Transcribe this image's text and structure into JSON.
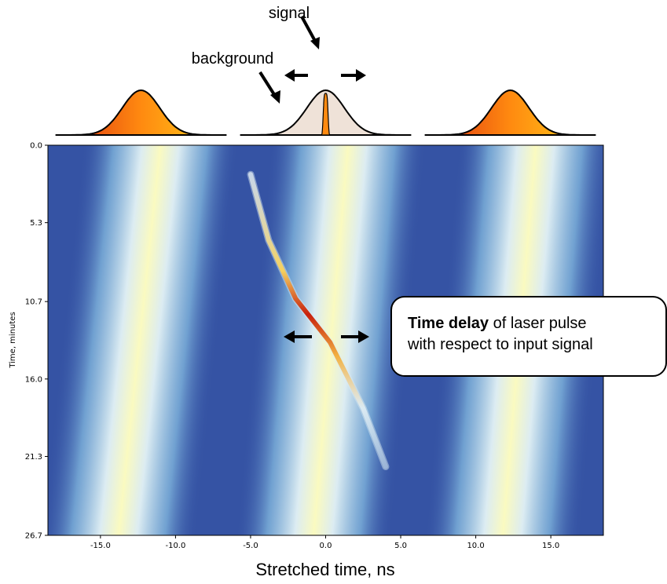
{
  "annotations": {
    "signal_label": "signal",
    "background_label": "background",
    "callout_bold": "Time delay",
    "callout_rest_line1": " of laser pulse",
    "callout_line2": "with respect to input signal"
  },
  "colors": {
    "pulse_dark": "#d92b12",
    "pulse_mid": "#ff8a10",
    "pulse_light": "#ffd21a",
    "background_fill": "#efe2d8",
    "heatmap_low": "#3553a4",
    "heatmap_high": "#fafac0",
    "signal_trace": "#d03010"
  },
  "chart_data": [
    {
      "type": "line",
      "description_role": "pulse profiles",
      "title": "",
      "xlabel": "",
      "ylabel": "",
      "x_range_ns": [
        -18.5,
        18.5
      ],
      "series": [
        {
          "name": "",
          "center": -12.3,
          "width": 3.0,
          "peak": 1.0,
          "fill": "gradient-orange"
        },
        {
          "name": "background",
          "center": 0.0,
          "width": 3.0,
          "peak": 1.0,
          "fill": "beige"
        },
        {
          "name": "signal",
          "center": 0.0,
          "width": 0.18,
          "peak": 1.55,
          "fill": "orange"
        },
        {
          "name": "",
          "center": 12.3,
          "width": 3.0,
          "peak": 1.0,
          "fill": "gradient-orange"
        }
      ]
    },
    {
      "type": "heatmap",
      "title": "",
      "xlabel": "Stretched time, ns",
      "ylabel": "Time, minutes",
      "xlim": [
        -18.5,
        18.5
      ],
      "ylim": [
        26.7,
        0.0
      ],
      "x_ticks": [
        "-15.0",
        "-10.0",
        "-5.0",
        "0.0",
        "5.0",
        "10.0",
        "15.0"
      ],
      "x_tick_values": [
        -15,
        -10,
        -5,
        0,
        5,
        10,
        15
      ],
      "y_ticks": [
        "0.0",
        "5.3",
        "10.7",
        "16.0",
        "21.3",
        "26.7"
      ],
      "y_tick_values": [
        0.0,
        5.3,
        10.7,
        16.0,
        21.3,
        26.7
      ],
      "bands": {
        "centers_at_top_ns": [
          -11.0,
          1.5,
          14.0
        ],
        "centers_at_bottom_ns": [
          -13.8,
          -0.8,
          11.8
        ],
        "width_ns": 2.0
      },
      "signal_trace": {
        "points": [
          [
            -5.0,
            2.0
          ],
          [
            -3.8,
            6.5
          ],
          [
            -2.0,
            10.5
          ],
          [
            0.3,
            13.5
          ],
          [
            2.5,
            18.0
          ],
          [
            4.0,
            22.0
          ]
        ],
        "peak_at_minutes": 12.5
      }
    }
  ]
}
